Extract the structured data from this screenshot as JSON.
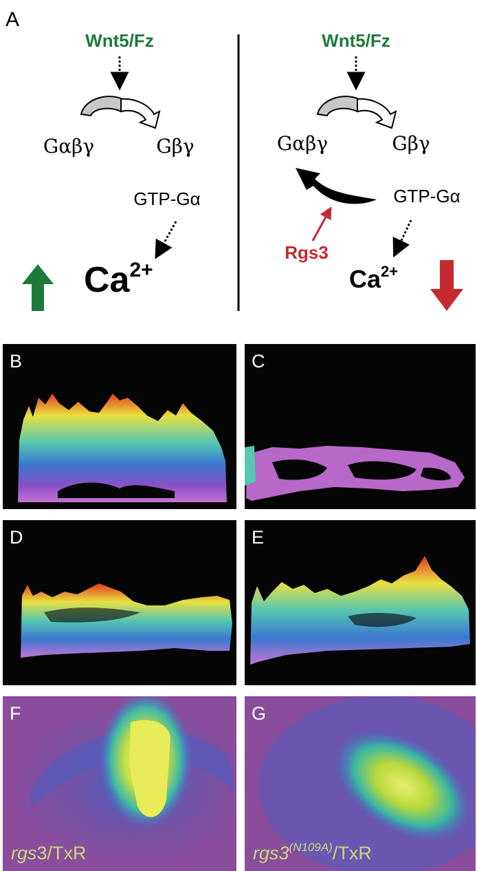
{
  "figure_label": "A",
  "left": {
    "ligand": "Wnt5/Fz",
    "heterotrimer": "Gαβγ",
    "dimer": "Gβγ",
    "active_alpha": "GTP-Gα",
    "ion": "Ca",
    "ion_sup": "2+"
  },
  "right": {
    "ligand": "Wnt5/Fz",
    "heterotrimer": "Gαβγ",
    "dimer": "Gβγ",
    "active_alpha": "GTP-Gα",
    "regulator": "Rgs3",
    "ion": "Ca",
    "ion_sup": "2+"
  },
  "colors": {
    "ligand": "#1d7a3a",
    "regulator": "#c62a30",
    "up_arrow": "#1d7a3a",
    "down_arrow": "#c62a30",
    "panel_bg": "#050505",
    "caption": "#c9d87a"
  },
  "icons": {
    "up": "up-arrow-icon",
    "down": "down-arrow-icon",
    "cycle": "gtpase-cycle-arrow-icon"
  },
  "panels": [
    {
      "label": "B",
      "caption": null
    },
    {
      "label": "C",
      "caption": null
    },
    {
      "label": "D",
      "caption": null
    },
    {
      "label": "E",
      "caption": null
    },
    {
      "label": "F",
      "caption_gene": "rgs",
      "caption_num": "3",
      "caption_suffix": "/TxR"
    },
    {
      "label": "G",
      "caption_gene": "rgs3",
      "caption_sup": "(N109A)",
      "caption_suffix": "/TxR"
    }
  ]
}
